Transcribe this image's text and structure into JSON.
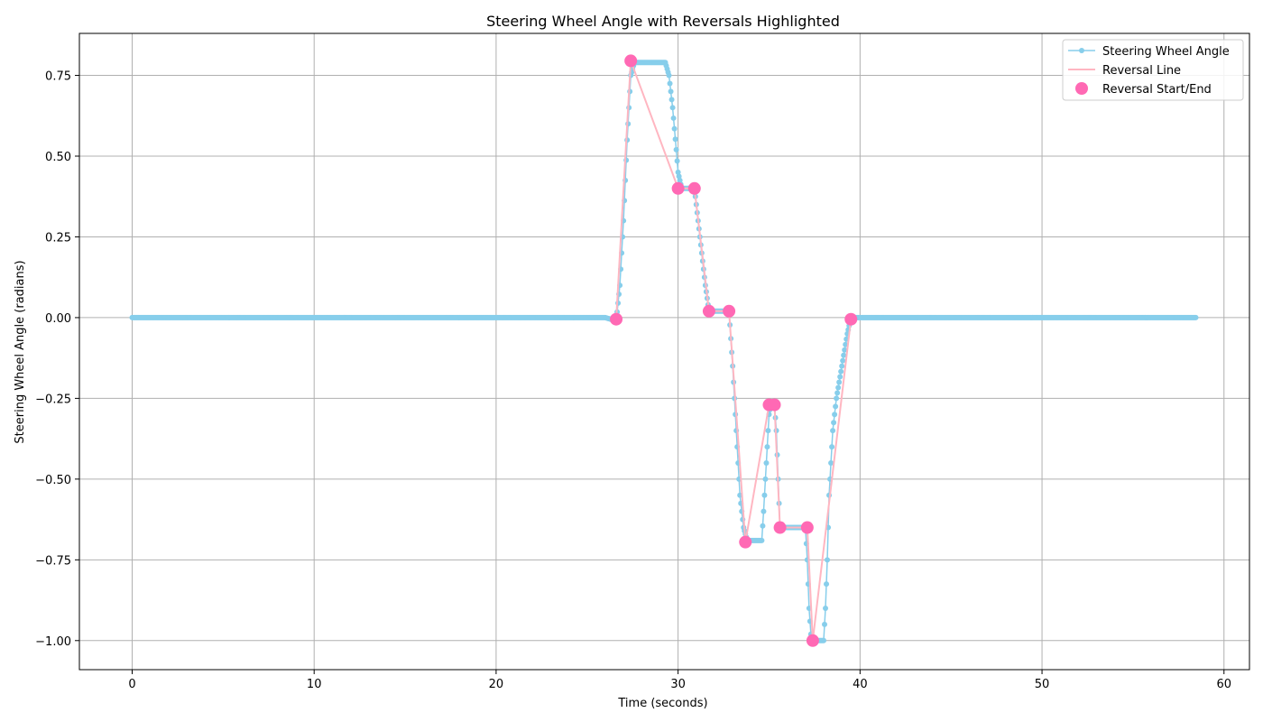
{
  "chart_data": {
    "type": "line",
    "title": "Steering Wheel Angle with Reversals Highlighted",
    "xlabel": "Time (seconds)",
    "ylabel": "Steering Wheel Angle (radians)",
    "xlim": [
      -2.9,
      61.4
    ],
    "ylim": [
      -1.09,
      0.88
    ],
    "xticks": [
      0,
      10,
      20,
      30,
      40,
      50,
      60
    ],
    "yticks": [
      -1.0,
      -0.75,
      -0.5,
      -0.25,
      0.0,
      0.25,
      0.5,
      0.75
    ],
    "ytick_labels": [
      "−1.00",
      "−0.75",
      "−0.50",
      "−0.25",
      "0.00",
      "0.25",
      "0.50",
      "0.75"
    ],
    "grid": true,
    "legend_position": "top-right",
    "series": [
      {
        "name": "Steering Wheel Angle",
        "kind": "line-markers",
        "color": "#87ceeb",
        "x": [
          0,
          5,
          10,
          15,
          20,
          26.0,
          26.6,
          26.8,
          27.0,
          27.2,
          27.4,
          27.6,
          28.0,
          28.5,
          29.0,
          29.3,
          29.5,
          29.7,
          29.9,
          30.0,
          30.2,
          30.6,
          30.9,
          31.1,
          31.3,
          31.5,
          31.7,
          32.0,
          32.5,
          32.8,
          33.0,
          33.2,
          33.4,
          33.6,
          33.8,
          34.2,
          34.6,
          34.7,
          34.8,
          34.9,
          35.0,
          35.1,
          35.3,
          35.4,
          35.5,
          35.6,
          36.0,
          36.5,
          37.0,
          37.1,
          37.2,
          37.3,
          37.4,
          37.6,
          37.8,
          38.0,
          38.1,
          38.2,
          38.3,
          38.5,
          38.7,
          39.0,
          39.3,
          39.5,
          40,
          45,
          50,
          55,
          58.5
        ],
        "y": [
          0,
          0,
          0,
          0,
          0,
          0,
          -0.01,
          0.1,
          0.3,
          0.55,
          0.75,
          0.79,
          0.79,
          0.79,
          0.79,
          0.79,
          0.75,
          0.65,
          0.52,
          0.45,
          0.4,
          0.4,
          0.4,
          0.3,
          0.2,
          0.1,
          0.02,
          0.02,
          0.02,
          0.02,
          -0.15,
          -0.35,
          -0.55,
          -0.65,
          -0.69,
          -0.69,
          -0.69,
          -0.6,
          -0.5,
          -0.4,
          -0.3,
          -0.27,
          -0.27,
          -0.35,
          -0.5,
          -0.65,
          -0.65,
          -0.65,
          -0.65,
          -0.75,
          -0.9,
          -0.98,
          -1.0,
          -1.0,
          -1.0,
          -1.0,
          -0.9,
          -0.75,
          -0.55,
          -0.35,
          -0.25,
          -0.15,
          -0.05,
          0,
          0,
          0,
          0,
          0,
          0
        ]
      },
      {
        "name": "Reversal Line",
        "kind": "line",
        "color": "#ffb6c1",
        "x": [
          26.6,
          27.4,
          30.0,
          30.9,
          31.7,
          32.8,
          33.7,
          35.0,
          35.3,
          35.6,
          37.1,
          37.4,
          39.5
        ],
        "y": [
          -0.005,
          0.795,
          0.4,
          0.4,
          0.02,
          0.02,
          -0.695,
          -0.27,
          -0.27,
          -0.65,
          -0.65,
          -1.0,
          -0.005
        ]
      },
      {
        "name": "Reversal Start/End",
        "kind": "scatter",
        "color": "#ff69b4",
        "x": [
          26.6,
          27.4,
          30.0,
          30.9,
          31.7,
          32.8,
          33.7,
          35.0,
          35.3,
          35.6,
          37.1,
          37.4,
          39.5
        ],
        "y": [
          -0.005,
          0.795,
          0.4,
          0.4,
          0.02,
          0.02,
          -0.695,
          -0.27,
          -0.27,
          -0.65,
          -0.65,
          -1.0,
          -0.005
        ]
      }
    ]
  }
}
